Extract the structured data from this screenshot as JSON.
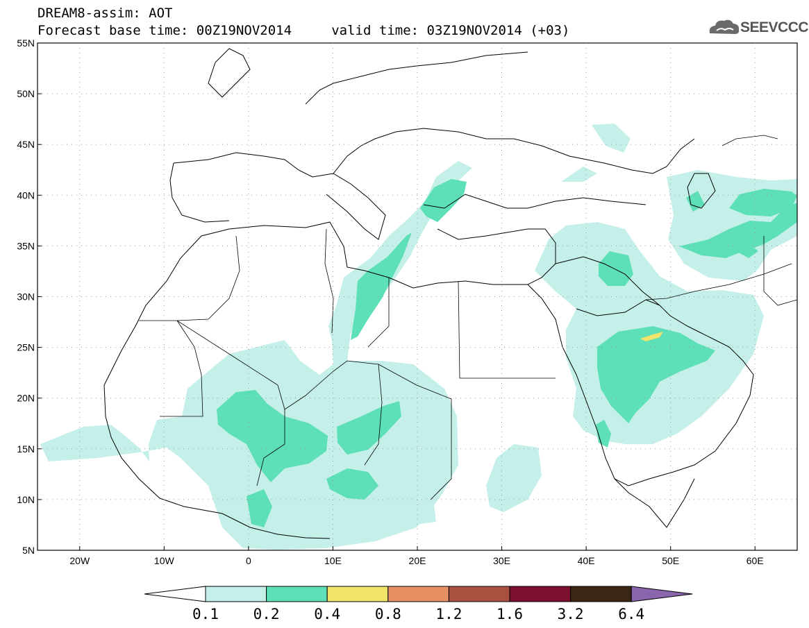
{
  "title": {
    "line1": "DREAM8-assim: AOT",
    "line2": "Forecast base time: 00Z19NOV2014     valid time: 03Z19NOV2014 (+03)"
  },
  "logo": {
    "text": "SEEVCCC",
    "icon": "cloud-icon"
  },
  "map": {
    "lon_range": [
      -25,
      65
    ],
    "lat_range": [
      5,
      55
    ],
    "lat_labels": [
      "55N",
      "50N",
      "45N",
      "40N",
      "35N",
      "30N",
      "25N",
      "20N",
      "15N",
      "10N",
      "5N"
    ],
    "lat_values": [
      55,
      50,
      45,
      40,
      35,
      30,
      25,
      20,
      15,
      10,
      5
    ],
    "lon_labels": [
      "20W",
      "10W",
      "0",
      "10E",
      "20E",
      "30E",
      "40E",
      "50E",
      "60E"
    ],
    "lon_values": [
      -20,
      -10,
      0,
      10,
      20,
      30,
      40,
      50,
      60
    ],
    "grid": "dotted",
    "field_colors": {
      "0.1-0.2": "#c5f0ea",
      "0.2-0.4": "#5ddfb7",
      "0.4-0.8": "#f0e46a"
    }
  },
  "colorbar": {
    "labels": [
      "0.1",
      "0.2",
      "0.4",
      "0.8",
      "1.2",
      "1.6",
      "3.2",
      "6.4"
    ],
    "colors": [
      "#c5f0ea",
      "#5ddfb7",
      "#f0e46a",
      "#e89064",
      "#aa5040",
      "#7a0f2e",
      "#3b2616",
      "#8a67ad"
    ],
    "under_color": "#ffffff"
  }
}
